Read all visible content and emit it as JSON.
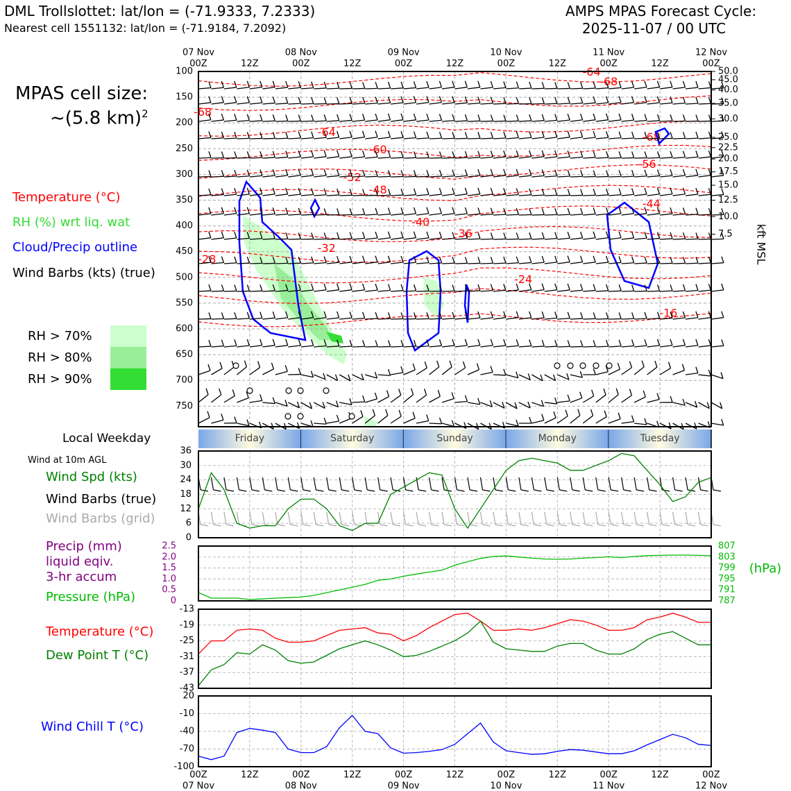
{
  "header": {
    "title_left": "DML Trollslottet: lat/lon = (-71.9333, 7.2333)",
    "subtitle_left": "Nearest cell 1551132: lat/lon = (-71.9184, 7.2092)",
    "title_right_1": "AMPS MPAS Forecast Cycle:",
    "title_right_2": "2025-11-07 / 00 UTC"
  },
  "sidebar": {
    "cell_size_label": "MPAS cell size:",
    "cell_size_value": "~(5.8 km)",
    "cell_size_exp": "2",
    "legend_temperature": "Temperature (°C)",
    "legend_rh": "RH (%) wrt liq. wat",
    "legend_cloud": "Cloud/Precip outline",
    "legend_wind": "Wind Barbs (kts) (true)",
    "rh_levels": [
      "RH > 70%",
      "RH > 80%",
      "RH > 90%"
    ],
    "local_weekday": "Local Weekday",
    "wind_10m": "Wind at 10m AGL",
    "wind_spd": "Wind Spd (kts)",
    "wind_barbs_true": "Wind Barbs (true)",
    "wind_barbs_grid": "Wind Barbs (grid)",
    "precip_1": "Precip (mm)",
    "precip_2": "liquid eqiv.",
    "precip_3": "3-hr accum",
    "pressure": "Pressure (hPa)",
    "temperature": "Temperature (°C)",
    "dewpoint": "Dew Point T (°C)",
    "windchill": "Wind Chill T (°C)"
  },
  "colors": {
    "temp": "#ff0000",
    "rh_label": "#22dd22",
    "cloud": "#0000ff",
    "dew": "#008000",
    "precip": "#800080",
    "pressure": "#00bb00",
    "windspd": "#008000",
    "grid_barbs": "#aaaaaa",
    "rh70": "#ccffcc",
    "rh80": "#99ee99",
    "rh90": "#33dd33"
  },
  "chart_data": [
    {
      "type": "line",
      "name": "upper-air-section",
      "x_top_dates": [
        "07 Nov",
        "08 Nov",
        "09 Nov",
        "10 Nov",
        "11 Nov",
        "12 Nov"
      ],
      "x_top_times": [
        "00Z",
        "12Z",
        "00Z",
        "12Z",
        "00Z",
        "12Z",
        "00Z",
        "12Z",
        "00Z",
        "12Z",
        "00Z"
      ],
      "y_pressure_ticks": [
        100,
        150,
        200,
        250,
        300,
        350,
        400,
        450,
        500,
        550,
        600,
        650,
        700,
        750
      ],
      "y_pressure_range": [
        100,
        790
      ],
      "right_axis_label": "kft MSL",
      "right_axis_ticks": [
        {
          "label": "50.0",
          "p": 100
        },
        {
          "label": "45.0",
          "p": 116
        },
        {
          "label": "40.0",
          "p": 136
        },
        {
          "label": "35.0",
          "p": 162
        },
        {
          "label": "30.0",
          "p": 192
        },
        {
          "label": "25.0",
          "p": 228
        },
        {
          "label": "22.5",
          "p": 248
        },
        {
          "label": "20.0",
          "p": 270
        },
        {
          "label": "17.5",
          "p": 295
        },
        {
          "label": "15.0",
          "p": 321
        },
        {
          "label": "12.5",
          "p": 350
        },
        {
          "label": "10.0",
          "p": 382
        },
        {
          "label": "7.5",
          "p": 416
        }
      ],
      "temperature_labels": [
        {
          "label": "-64",
          "hour": 92,
          "p": 102
        },
        {
          "label": "-68",
          "hour": 96,
          "p": 121
        },
        {
          "label": "-68",
          "hour": 1,
          "p": 180
        },
        {
          "label": "-68",
          "hour": 106,
          "p": 229
        },
        {
          "label": "-64",
          "hour": 30,
          "p": 219
        },
        {
          "label": "-60",
          "hour": 42,
          "p": 253
        },
        {
          "label": "-56",
          "hour": 105,
          "p": 281
        },
        {
          "label": "-52",
          "hour": 36,
          "p": 307
        },
        {
          "label": "-48",
          "hour": 42,
          "p": 331
        },
        {
          "label": "-44",
          "hour": 106,
          "p": 358
        },
        {
          "label": "-40",
          "hour": 52,
          "p": 394
        },
        {
          "label": "-36",
          "hour": 62,
          "p": 416
        },
        {
          "label": "-32",
          "hour": 30,
          "p": 444
        },
        {
          "label": "-28",
          "hour": 2,
          "p": 466
        },
        {
          "label": "-24",
          "hour": 76,
          "p": 505
        },
        {
          "label": "-16",
          "hour": 110,
          "p": 570
        }
      ],
      "surface_obs_markers": 13
    },
    {
      "type": "table",
      "name": "local-weekday-band",
      "days": [
        "Friday",
        "Saturday",
        "Sunday",
        "Monday",
        "Tuesday"
      ]
    },
    {
      "type": "line",
      "name": "wind-speed",
      "ylabel": "Wind Spd (kts)",
      "ylim": [
        0,
        36
      ],
      "yticks": [
        0,
        6,
        12,
        18,
        24,
        30,
        36
      ],
      "x_hours": [
        0,
        3,
        6,
        9,
        12,
        15,
        18,
        21,
        24,
        27,
        30,
        33,
        36,
        39,
        42,
        45,
        48,
        51,
        54,
        57,
        60,
        63,
        66,
        69,
        72,
        75,
        78,
        81,
        84,
        87,
        90,
        93,
        96,
        99,
        102,
        105,
        108,
        111,
        114,
        117,
        120
      ],
      "values": [
        12,
        27,
        20,
        6,
        4,
        5,
        5,
        12,
        16,
        16,
        12,
        5,
        3,
        6,
        6,
        18,
        21,
        24,
        27,
        26,
        12,
        4,
        12,
        20,
        28,
        32,
        33,
        32,
        31,
        28,
        28,
        30,
        32,
        35,
        34,
        28,
        22,
        15,
        17,
        23,
        25
      ]
    },
    {
      "type": "line",
      "name": "precip-pressure",
      "precip_ylim": [
        0,
        2.5
      ],
      "precip_yticks": [
        "0",
        "0.5",
        "1.0",
        "1.5",
        "2.0",
        "2.5"
      ],
      "pressure_ylim": [
        787,
        807
      ],
      "pressure_yticks": [
        "787",
        "791",
        "795",
        "799",
        "803",
        "807"
      ],
      "pressure_unit": "(hPa)",
      "x_hours": [
        0,
        3,
        6,
        9,
        12,
        15,
        18,
        21,
        24,
        27,
        30,
        33,
        36,
        39,
        42,
        45,
        48,
        51,
        54,
        57,
        60,
        63,
        66,
        69,
        72,
        75,
        78,
        81,
        84,
        87,
        90,
        93,
        96,
        99,
        102,
        105,
        108,
        111,
        114,
        117,
        120
      ],
      "pressure_values": [
        790,
        788,
        788,
        788,
        787.5,
        787.7,
        788,
        788.2,
        788.4,
        789,
        790,
        791,
        792,
        793,
        794.5,
        795,
        796,
        796.8,
        797.5,
        798.2,
        800,
        801.3,
        802.5,
        803.2,
        803.4,
        803,
        802.6,
        802.3,
        802.2,
        802.3,
        802.6,
        802.8,
        803.1,
        802.8,
        803.2,
        803.5,
        803.6,
        803.7,
        803.7,
        803.6,
        803.5
      ],
      "precip_values": []
    },
    {
      "type": "line",
      "name": "temperature-dewpoint",
      "ylim": [
        -43,
        -13
      ],
      "yticks": [
        "-13",
        "-19",
        "-25",
        "-31",
        "-37",
        "-43"
      ],
      "x_hours": [
        0,
        3,
        6,
        9,
        12,
        15,
        18,
        21,
        24,
        27,
        30,
        33,
        36,
        39,
        42,
        45,
        48,
        51,
        54,
        57,
        60,
        63,
        66,
        69,
        72,
        75,
        78,
        81,
        84,
        87,
        90,
        93,
        96,
        99,
        102,
        105,
        108,
        111,
        114,
        117,
        120
      ],
      "series": [
        {
          "name": "Temperature",
          "values": [
            -30,
            -25,
            -25,
            -21,
            -20.5,
            -21,
            -24,
            -25.5,
            -25.5,
            -25,
            -23,
            -21,
            -20.5,
            -20,
            -22,
            -22.5,
            -25,
            -23,
            -20,
            -17.5,
            -15,
            -14.5,
            -17.5,
            -21,
            -21,
            -20.5,
            -21,
            -20,
            -18.5,
            -17,
            -17.5,
            -19,
            -21,
            -21,
            -20,
            -17,
            -16,
            -14.5,
            -16,
            -18,
            -18
          ]
        },
        {
          "name": "Dew Point",
          "values": [
            -42,
            -36,
            -34,
            -29.5,
            -30,
            -26.5,
            -28.5,
            -32.5,
            -33.5,
            -33,
            -30.5,
            -28,
            -26.5,
            -25,
            -26.5,
            -28.5,
            -31,
            -30.5,
            -29,
            -27,
            -25,
            -22,
            -17.5,
            -25.5,
            -28,
            -28.5,
            -29,
            -29,
            -27,
            -26,
            -26,
            -28.5,
            -30,
            -30,
            -28,
            -24.5,
            -22.5,
            -21.5,
            -24,
            -26.5,
            -26.5
          ]
        }
      ]
    },
    {
      "type": "line",
      "name": "wind-chill",
      "ylim": [
        -100,
        20
      ],
      "yticks": [
        "20",
        "-10",
        "-40",
        "-70",
        "-100"
      ],
      "x_hours": [
        0,
        3,
        6,
        9,
        12,
        15,
        18,
        21,
        24,
        27,
        30,
        33,
        36,
        39,
        42,
        45,
        48,
        51,
        54,
        57,
        60,
        63,
        66,
        69,
        72,
        75,
        78,
        81,
        84,
        87,
        90,
        93,
        96,
        99,
        102,
        105,
        108,
        111,
        114,
        117,
        120
      ],
      "values": [
        -82,
        -88,
        -82,
        -42,
        -35,
        -38,
        -42,
        -70,
        -76,
        -76,
        -66,
        -34,
        -13,
        -40,
        -44,
        -68,
        -77,
        -76,
        -74,
        -71,
        -62,
        -44,
        -26,
        -58,
        -73,
        -76,
        -79,
        -78,
        -74,
        -71,
        -72,
        -75,
        -78,
        -78,
        -73,
        -63,
        -54,
        -45,
        -51,
        -62,
        -64
      ]
    },
    {
      "type": "line",
      "name": "bottom-axis",
      "x_bottom_times": [
        "00Z",
        "12Z",
        "00Z",
        "12Z",
        "00Z",
        "12Z",
        "00Z",
        "12Z",
        "00Z",
        "12Z",
        "00Z"
      ],
      "x_bottom_dates": [
        "07 Nov",
        "08 Nov",
        "09 Nov",
        "10 Nov",
        "11 Nov",
        "12 Nov"
      ]
    }
  ]
}
